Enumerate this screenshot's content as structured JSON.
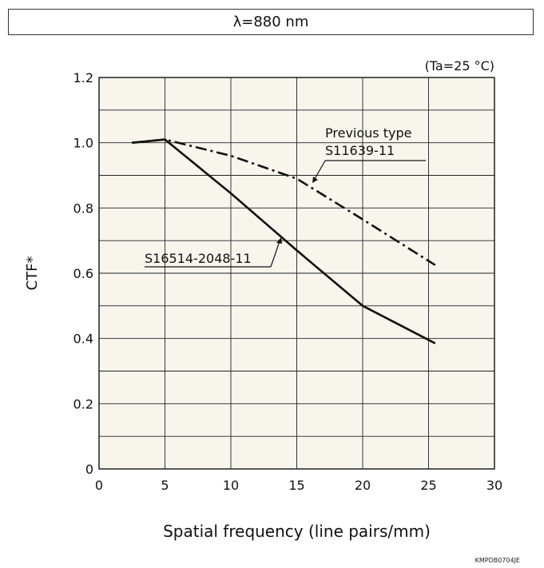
{
  "chart_data": {
    "type": "line",
    "title": "λ=880 nm",
    "condition": "(Ta=25 °C)",
    "xlabel": "Spatial frequency (line pairs/mm)",
    "ylabel": "CTF*",
    "xlim": [
      0,
      30
    ],
    "ylim": [
      0,
      1.2
    ],
    "x_ticks": [
      0,
      5,
      10,
      15,
      20,
      25,
      30
    ],
    "y_ticks": [
      0,
      0.2,
      0.4,
      0.6,
      0.8,
      1.0,
      1.2
    ],
    "x_tick_labels": [
      "0",
      "5",
      "10",
      "15",
      "20",
      "25",
      "30"
    ],
    "y_tick_labels": [
      "0",
      "0.2",
      "0.4",
      "0.6",
      "0.8",
      "1.0",
      "1.2"
    ],
    "x_grid_step": 5,
    "y_grid_step": 0.1,
    "grid": true,
    "background_color": "#f7f5ec",
    "series": [
      {
        "name": "S16514-2048-11",
        "style": "solid",
        "color": "#111111",
        "x": [
          2.5,
          5,
          10,
          15,
          20,
          25.5
        ],
        "y": [
          1.0,
          1.01,
          0.845,
          0.67,
          0.5,
          0.385
        ]
      },
      {
        "name": "Previous type\nS11639-11",
        "name_lines": [
          "Previous type",
          "S11639-11"
        ],
        "style": "dash-dot",
        "color": "#111111",
        "x": [
          2.5,
          5,
          10,
          15,
          20,
          25.5
        ],
        "y": [
          1.0,
          1.01,
          0.96,
          0.89,
          0.765,
          0.625
        ]
      }
    ]
  },
  "footer": {
    "code": "KMPDB0704JE"
  }
}
